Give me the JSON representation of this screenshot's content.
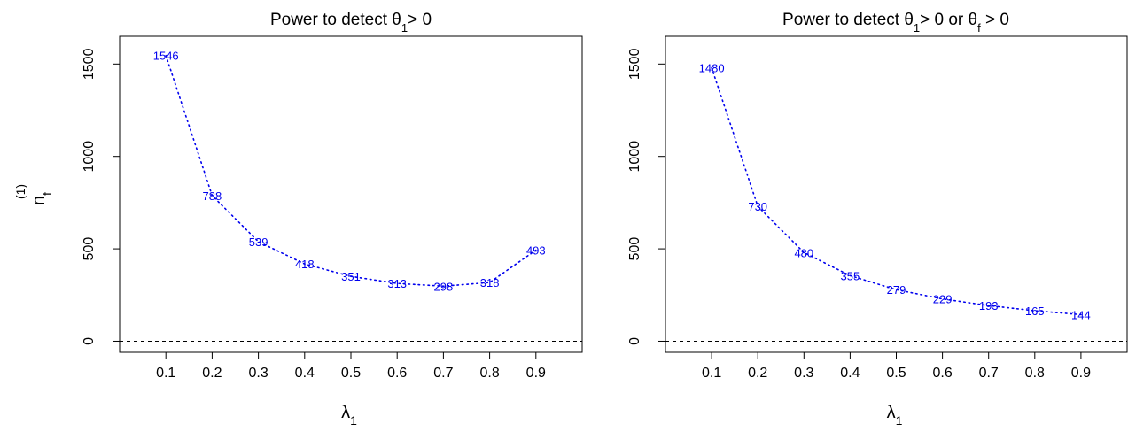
{
  "chart_data": [
    {
      "type": "line",
      "title": "Power to detect θ₁> 0",
      "title_parts": {
        "pre": "Power to detect θ",
        "sub": "1",
        "post": "> 0"
      },
      "xlabel": "λ₁",
      "xlabel_parts": {
        "main": "λ",
        "sub": "1"
      },
      "ylabel": "n_f^(1)",
      "ylabel_parts": {
        "main": "n",
        "sub": "f",
        "sup": "(1)"
      },
      "x": [
        0.1,
        0.2,
        0.3,
        0.4,
        0.5,
        0.6,
        0.7,
        0.8,
        0.9
      ],
      "x_tick_labels": [
        "0.1",
        "0.2",
        "0.3",
        "0.4",
        "0.5",
        "0.6",
        "0.7",
        "0.8",
        "0.9"
      ],
      "values": [
        1546,
        788,
        539,
        418,
        351,
        313,
        298,
        318,
        493
      ],
      "point_labels": [
        "1546",
        "788",
        "539",
        "418",
        "351",
        "313",
        "298",
        "318",
        "493"
      ],
      "y_ticks": [
        0,
        500,
        1000,
        1500
      ],
      "y_tick_labels": [
        "0",
        "500",
        "1000",
        "1500"
      ],
      "xlim": [
        0.0,
        1.0
      ],
      "ylim": [
        -60,
        1650
      ],
      "reference_line": 0,
      "line_style": "dotted",
      "color": "#0000ee",
      "grid": false
    },
    {
      "type": "line",
      "title": "Power to detect θ₁> 0 or θf > 0",
      "title_parts": {
        "pre": "Power to detect θ",
        "sub": "1",
        "mid": "> 0 or θ",
        "sub2": "f",
        "post": " > 0"
      },
      "xlabel": "λ₁",
      "xlabel_parts": {
        "main": "λ",
        "sub": "1"
      },
      "x": [
        0.1,
        0.2,
        0.3,
        0.4,
        0.5,
        0.6,
        0.7,
        0.8,
        0.9
      ],
      "x_tick_labels": [
        "0.1",
        "0.2",
        "0.3",
        "0.4",
        "0.5",
        "0.6",
        "0.7",
        "0.8",
        "0.9"
      ],
      "values": [
        1480,
        730,
        480,
        355,
        279,
        229,
        193,
        165,
        144
      ],
      "point_labels": [
        "1480",
        "730",
        "480",
        "355",
        "279",
        "229",
        "193",
        "165",
        "144"
      ],
      "y_ticks": [
        0,
        500,
        1000,
        1500
      ],
      "y_tick_labels": [
        "0",
        "500",
        "1000",
        "1500"
      ],
      "xlim": [
        0.0,
        1.0
      ],
      "ylim": [
        -60,
        1650
      ],
      "reference_line": 0,
      "line_style": "dotted",
      "color": "#0000ee",
      "grid": false
    }
  ]
}
